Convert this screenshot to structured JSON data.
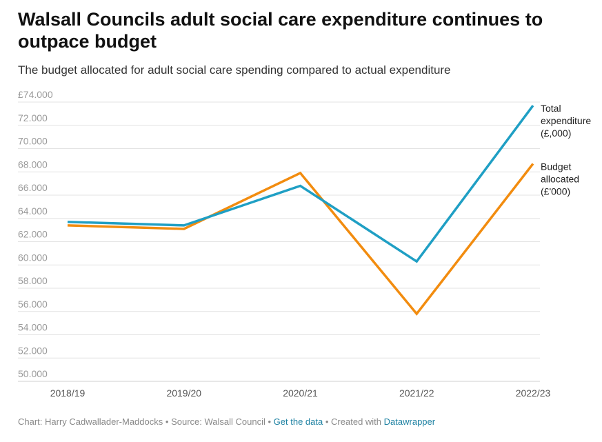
{
  "header": {
    "title": "Walsall Councils adult social care expenditure continues to outpace budget",
    "subtitle": "The budget allocated for adult social care spending compared to actual expenditure"
  },
  "footer": {
    "chart_credit": "Chart: Harry Cadwallader-Maddocks",
    "source": "Source: Walsall Council",
    "get_data": "Get the data",
    "created_with": "Created with",
    "tool": "Datawrapper",
    "separator": "•"
  },
  "colors": {
    "total_expenditure": "#1f9fc4",
    "budget_allocated": "#f28c0f",
    "grid": "#e3e3e3",
    "link": "#1d81a2"
  },
  "chart_data": {
    "type": "line",
    "title": "Walsall Councils adult social care expenditure continues to outpace budget",
    "subtitle": "The budget allocated for adult social care spending compared to actual expenditure",
    "x": [
      "2018/19",
      "2019/20",
      "2020/21",
      "2021/22",
      "2022/23"
    ],
    "ylim": [
      50000,
      74000
    ],
    "yticks": [
      {
        "value": 74000,
        "label": "£74.000"
      },
      {
        "value": 72000,
        "label": "72.000"
      },
      {
        "value": 70000,
        "label": "70.000"
      },
      {
        "value": 68000,
        "label": "68.000"
      },
      {
        "value": 66000,
        "label": "66.000"
      },
      {
        "value": 64000,
        "label": "64.000"
      },
      {
        "value": 62000,
        "label": "62.000"
      },
      {
        "value": 60000,
        "label": "60.000"
      },
      {
        "value": 58000,
        "label": "58.000"
      },
      {
        "value": 56000,
        "label": "56.000"
      },
      {
        "value": 54000,
        "label": "54.000"
      },
      {
        "value": 52000,
        "label": "52.000"
      },
      {
        "value": 50000,
        "label": "50.000"
      }
    ],
    "grid": true,
    "legend": "direct labels at right",
    "series": [
      {
        "name": "Total expenditure (£,000)",
        "label_lines": [
          "Total",
          "expenditure",
          "(£,000)"
        ],
        "color": "#1f9fc4",
        "values": [
          63700,
          63400,
          66800,
          60300,
          73700
        ]
      },
      {
        "name": "Budget allocated (£'000)",
        "label_lines": [
          "Budget",
          "allocated",
          "(£'000)"
        ],
        "color": "#f28c0f",
        "values": [
          63400,
          63100,
          67900,
          55800,
          68700
        ]
      }
    ]
  }
}
